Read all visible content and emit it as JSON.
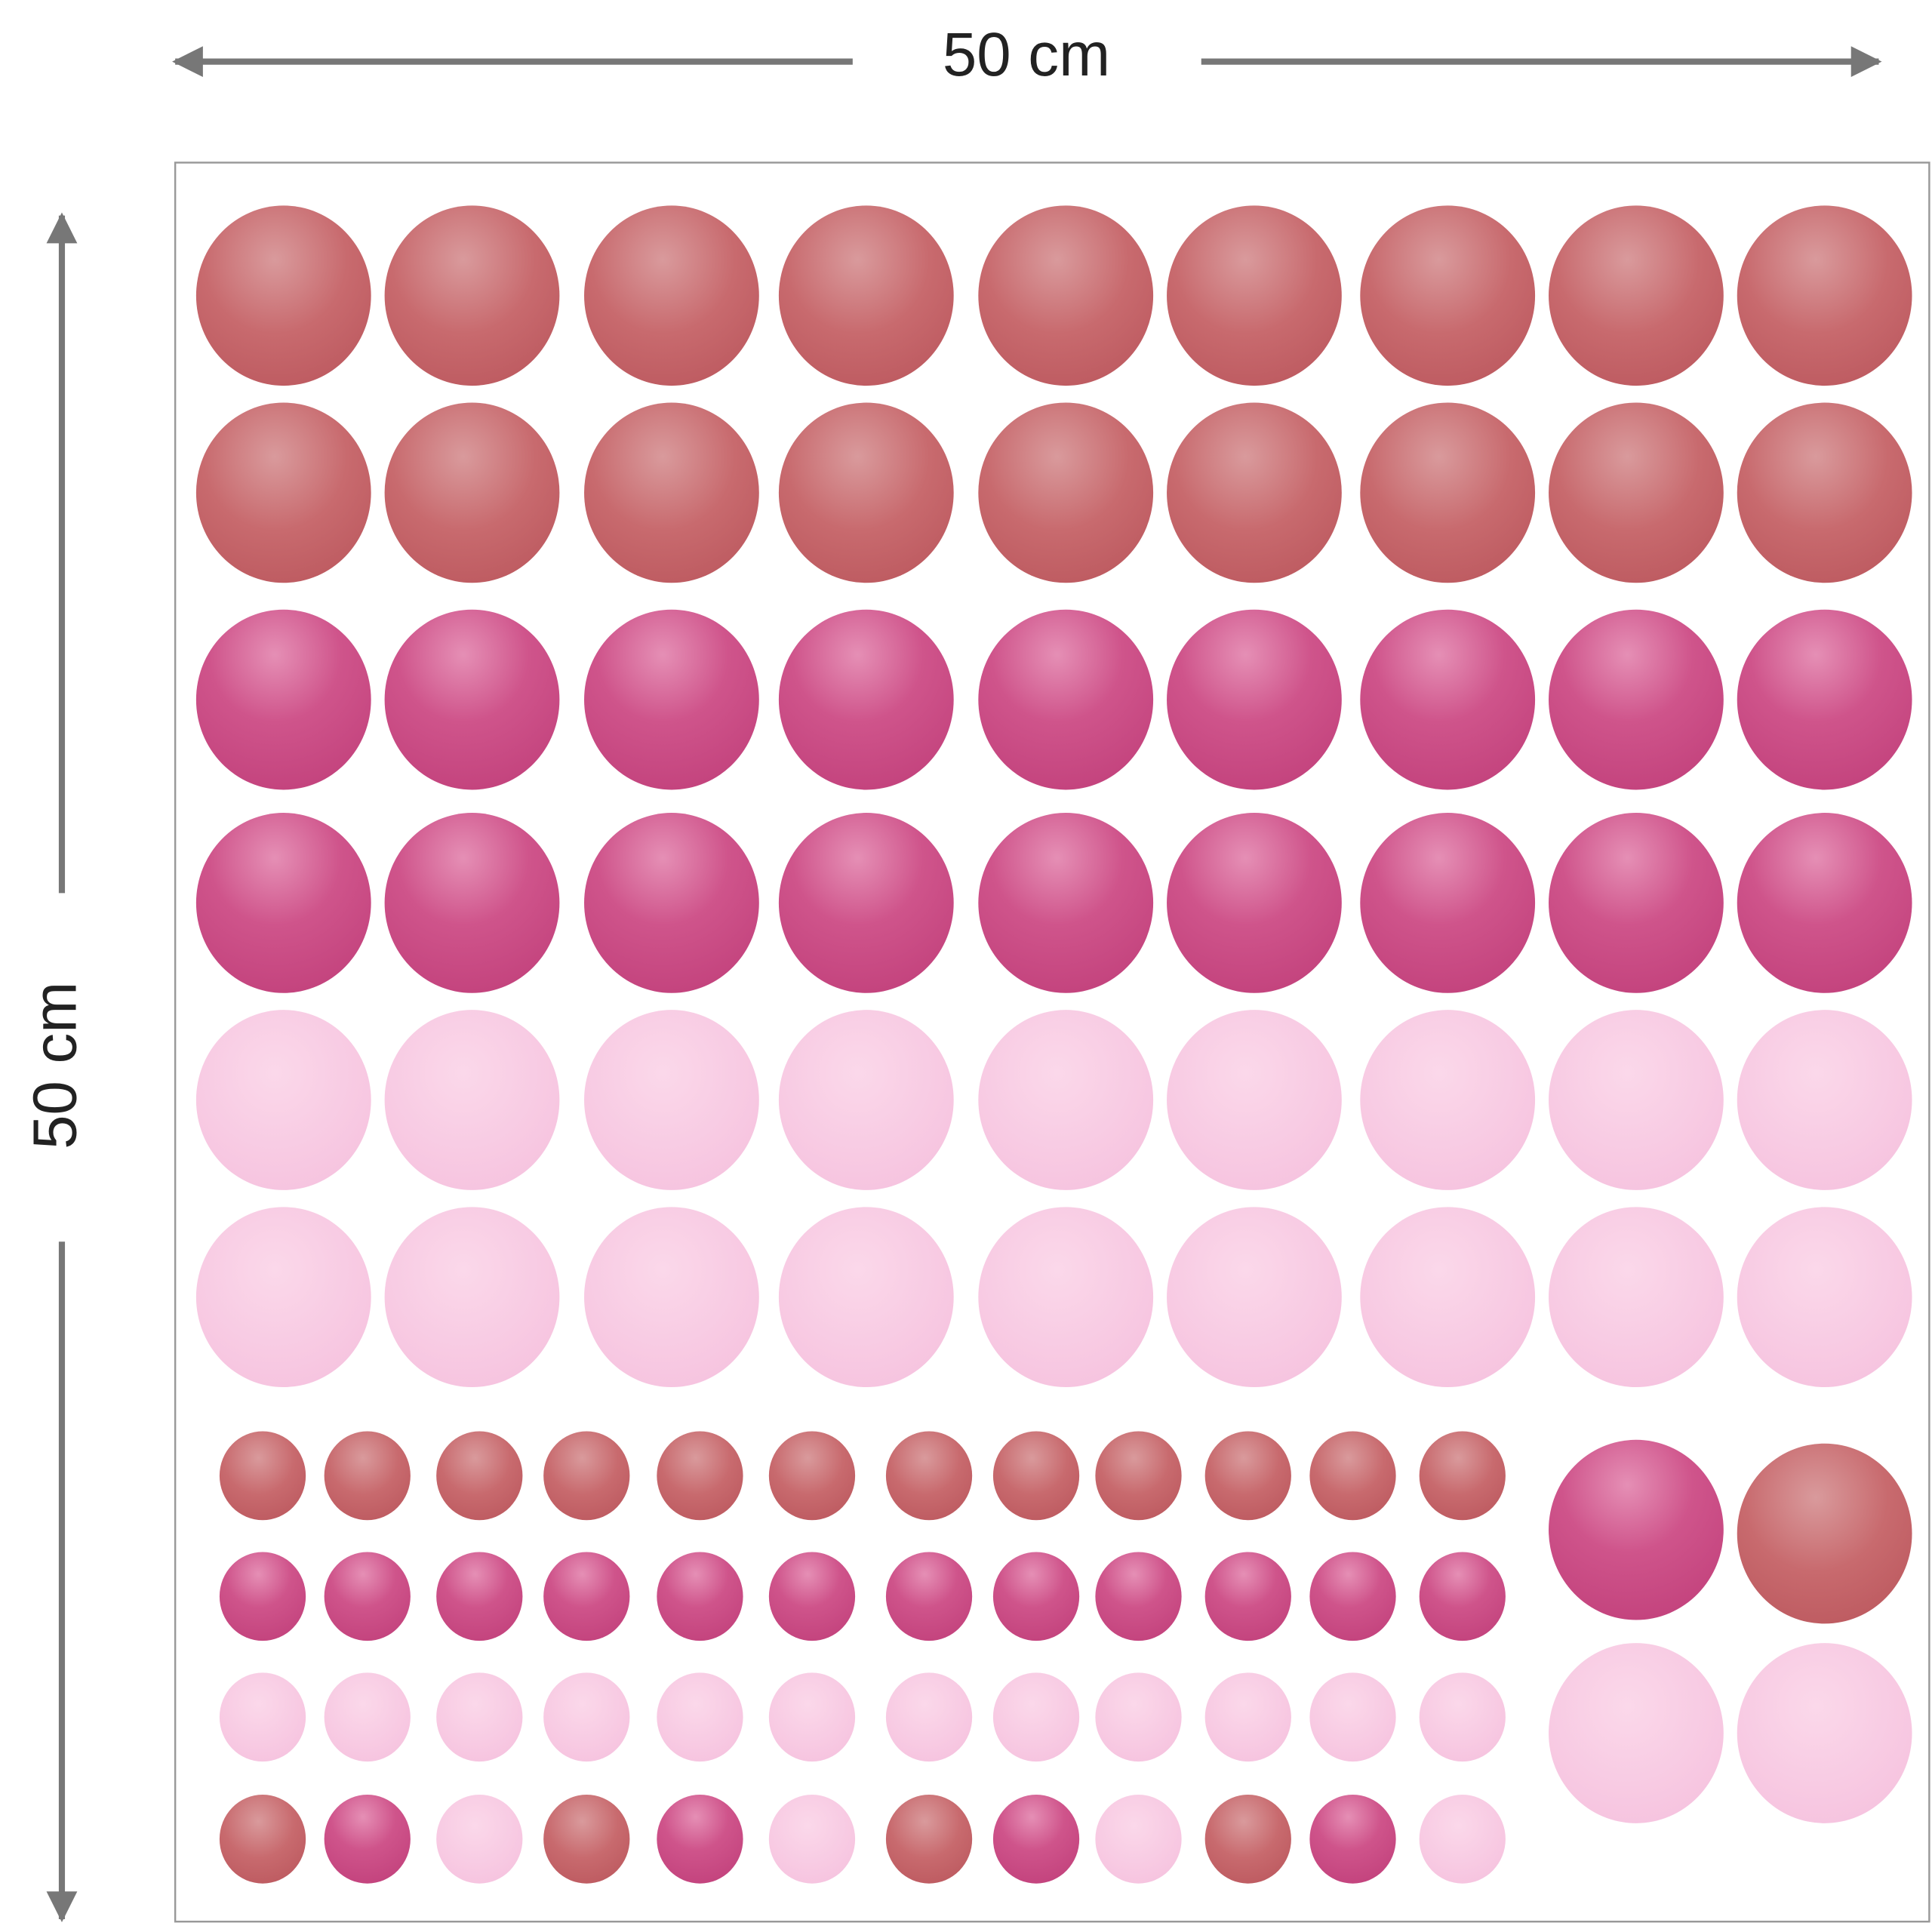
{
  "dimensions": {
    "width_label": "50 cm",
    "height_label": "50 cm"
  }
}
